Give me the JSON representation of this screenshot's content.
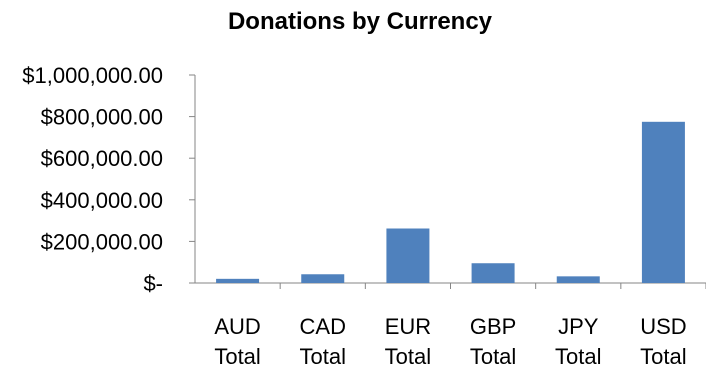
{
  "chart_data": {
    "type": "bar",
    "title": "Donations by Currency",
    "xlabel": "",
    "ylabel": "",
    "categories": [
      [
        "AUD",
        "Total"
      ],
      [
        "CAD",
        "Total"
      ],
      [
        "EUR",
        "Total"
      ],
      [
        "GBP",
        "Total"
      ],
      [
        "JPY",
        "Total"
      ],
      [
        "USD",
        "Total"
      ]
    ],
    "values": [
      20000,
      42000,
      262000,
      95000,
      32000,
      775000
    ],
    "ylim": [
      0,
      1000000
    ],
    "yticks": [
      0,
      200000,
      400000,
      600000,
      800000,
      1000000
    ],
    "ytick_labels": [
      "$-",
      "$200,000.00",
      "$400,000.00",
      "$600,000.00",
      "$800,000.00",
      "$1,000,000.00"
    ],
    "grid": false,
    "legend": "none",
    "colors": {
      "bar": "#4f81bd",
      "axis": "#868686",
      "text": "#000000"
    }
  }
}
